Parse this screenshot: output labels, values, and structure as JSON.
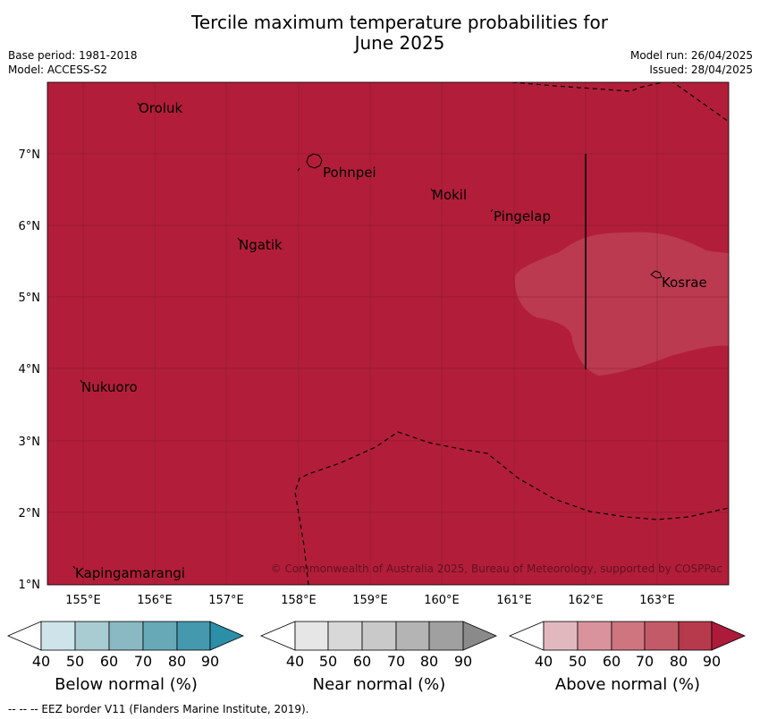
{
  "title_line1": "Tercile maximum temperature probabilities for",
  "title_line2": "June 2025",
  "base_period": "Base period: 1981-2018",
  "model": "Model: ACCESS-S2",
  "model_run": "Model run: 26/04/2025",
  "issued": "Issued: 28/04/2025",
  "copyright": "© Commonwealth of Australia 2025, Bureau of Meteorology, supported by COSPPac",
  "footer": "--  --  -- EEZ border V11 (Flanders Marine Institute, 2019).",
  "longitude_labels": [
    "155°E",
    "156°E",
    "157°E",
    "158°E",
    "159°E",
    "160°E",
    "161°E",
    "162°E",
    "163°E"
  ],
  "latitude_labels": [
    "7°N",
    "6°N",
    "5°N",
    "4°N",
    "3°N",
    "2°N",
    "1°N"
  ],
  "places": [
    {
      "name": "Oroluk"
    },
    {
      "name": "Pohnpei"
    },
    {
      "name": "Mokil"
    },
    {
      "name": "Pingelap"
    },
    {
      "name": "Ngatik"
    },
    {
      "name": "Kosrae"
    },
    {
      "name": "Nukuoro"
    },
    {
      "name": "Kapingamarangi"
    }
  ],
  "colorbars": [
    {
      "label": "Below normal (%)",
      "ticks": [
        "40",
        "50",
        "60",
        "70",
        "80",
        "90"
      ],
      "colors": [
        "#cfe4ea",
        "#a9cbd2",
        "#8ab9c3",
        "#68a9b8",
        "#4499ae",
        "#2b8fa8"
      ]
    },
    {
      "label": "Near normal (%)",
      "ticks": [
        "40",
        "50",
        "60",
        "70",
        "80",
        "90"
      ],
      "colors": [
        "#e6e6e6",
        "#d8d8d8",
        "#c9c9c9",
        "#b4b4b4",
        "#a0a0a0",
        "#8a8a8a"
      ]
    },
    {
      "label": "Above normal (%)",
      "ticks": [
        "40",
        "50",
        "60",
        "70",
        "80",
        "90"
      ],
      "colors": [
        "#e2b8bf",
        "#d9939c",
        "#ce7580",
        "#c35a68",
        "#b7394c",
        "#ad1b3a"
      ]
    }
  ],
  "colors": {
    "above_80_90": "#b21e39",
    "above_70_80": "#bb3a4f"
  }
}
